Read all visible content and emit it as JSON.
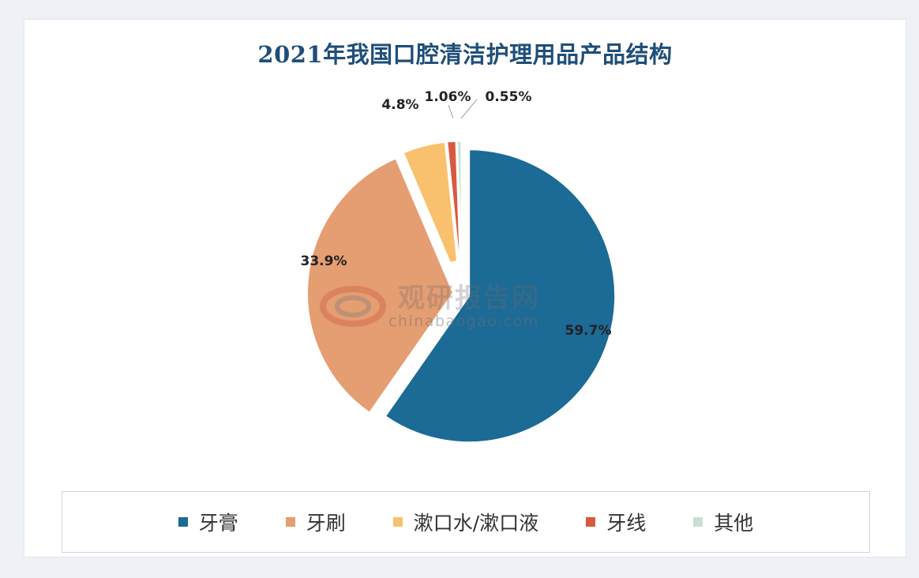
{
  "chart_data": {
    "type": "pie",
    "title": "2021年我国口腔清洁护理用品产品结构",
    "slices": [
      {
        "name": "牙膏",
        "value": 59.7,
        "label": "59.7%",
        "color": "#1c6a96"
      },
      {
        "name": "牙刷",
        "value": 33.9,
        "label": "33.9%",
        "color": "#e59d72"
      },
      {
        "name": "漱口水/漱口液",
        "value": 4.8,
        "label": "4.8%",
        "color": "#f9c16e"
      },
      {
        "name": "牙线",
        "value": 1.06,
        "label": "1.06%",
        "color": "#d9593f"
      },
      {
        "name": "其他",
        "value": 0.55,
        "label": "0.55%",
        "color": "#c6e2cf"
      }
    ],
    "legend_position": "bottom"
  },
  "watermark": {
    "brand": "观研报告网",
    "url": "chinabaogao.com"
  }
}
